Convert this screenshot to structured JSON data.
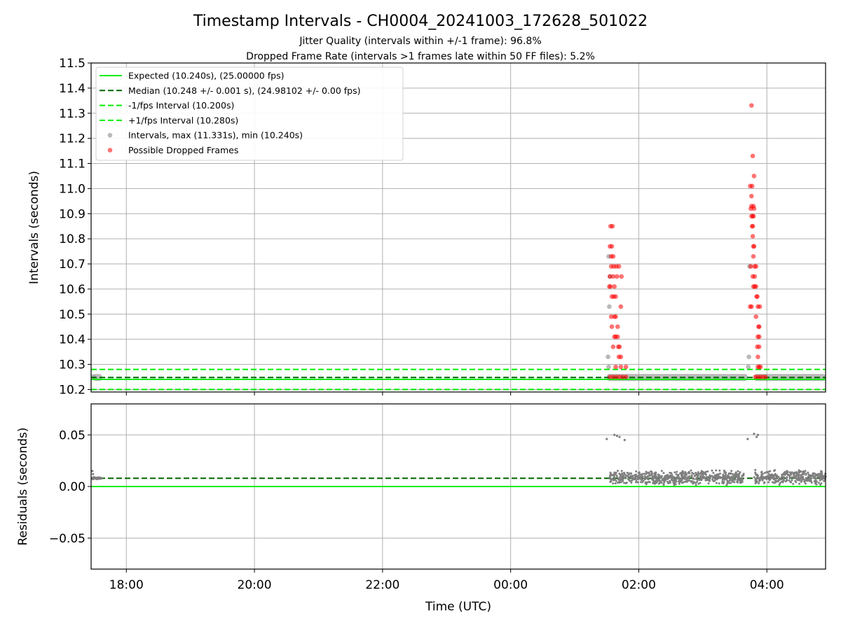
{
  "figure": {
    "title": "Timestamp Intervals - CH0004_20241003_172628_501022",
    "subtitle_1": "Jitter Quality (intervals within +/-1 frame): 96.8%",
    "subtitle_2": "Dropped Frame Rate (intervals >1 frames late within 50 FF files): 5.2%"
  },
  "colors": {
    "expected": "#00ee00",
    "median": "#006400",
    "bounds": "#00ee00",
    "intervals": "#7f7f7f",
    "dropped": "#ff0000",
    "grid": "#b0b0b0"
  },
  "chart_data": [
    {
      "type": "scatter",
      "title": "",
      "xlabel": "",
      "ylabel": "Intervals (seconds)",
      "x_unit": "hours (UTC)",
      "xlim": [
        "17:27",
        "04:55"
      ],
      "ylim": [
        10.19,
        11.5
      ],
      "xticks": [
        "18:00",
        "20:00",
        "22:00",
        "00:00",
        "02:00",
        "04:00"
      ],
      "yticks": [
        "10.2",
        "10.3",
        "10.4",
        "10.5",
        "10.6",
        "10.7",
        "10.8",
        "10.9",
        "11.0",
        "11.1",
        "11.2",
        "11.3",
        "11.4",
        "11.5"
      ],
      "grid": true,
      "legend_position": "top-left",
      "legend": [
        {
          "label": "Expected (10.240s), (25.00000 fps)",
          "style": "solid",
          "color_key": "expected"
        },
        {
          "label": "Median (10.248 +/- 0.001 s), (24.98102 +/- 0.00 fps)",
          "style": "dashed",
          "color_key": "median"
        },
        {
          "label": "-1/fps Interval (10.200s)",
          "style": "dashed",
          "color_key": "bounds"
        },
        {
          "label": "+1/fps Interval (10.280s)",
          "style": "dashed",
          "color_key": "bounds"
        },
        {
          "label": "Intervals, max (11.331s), min (10.240s)",
          "style": "point",
          "color_key": "intervals"
        },
        {
          "label": "Possible Dropped Frames",
          "style": "point",
          "color_key": "dropped"
        }
      ],
      "reference_lines": [
        {
          "y": 10.24,
          "style": "solid",
          "color_key": "expected"
        },
        {
          "y": 10.248,
          "style": "dashed",
          "color_key": "median"
        },
        {
          "y": 10.2,
          "style": "dashed",
          "color_key": "bounds"
        },
        {
          "y": 10.28,
          "style": "dashed",
          "color_key": "bounds"
        }
      ],
      "series": [
        {
          "name": "Intervals, max (11.331s), min (10.240s)",
          "points": [
            {
              "x": 17.48,
              "y": 10.252
            },
            {
              "x": 25.53,
              "y": 10.73
            },
            {
              "x": 25.55,
              "y": 10.65
            },
            {
              "x": 25.54,
              "y": 10.53
            },
            {
              "x": 25.52,
              "y": 10.33
            },
            {
              "x": 25.53,
              "y": 10.29
            },
            {
              "x": 27.73,
              "y": 10.69
            },
            {
              "x": 27.72,
              "y": 10.33
            },
            {
              "x": 27.71,
              "y": 10.29
            }
          ],
          "baseline_bands": [
            {
              "x_start": 17.48,
              "x_end": 17.62,
              "y": 10.248
            },
            {
              "x_start": 25.5,
              "x_end": 27.7,
              "y": 10.248
            },
            {
              "x_start": 27.8,
              "x_end": 28.92,
              "y": 10.248
            }
          ]
        },
        {
          "name": "Possible Dropped Frames",
          "points": [
            {
              "x": 25.56,
              "y": 10.85
            },
            {
              "x": 25.59,
              "y": 10.85
            },
            {
              "x": 25.55,
              "y": 10.77
            },
            {
              "x": 25.58,
              "y": 10.77
            },
            {
              "x": 25.57,
              "y": 10.73
            },
            {
              "x": 25.6,
              "y": 10.73
            },
            {
              "x": 25.57,
              "y": 10.69
            },
            {
              "x": 25.61,
              "y": 10.69
            },
            {
              "x": 25.65,
              "y": 10.69
            },
            {
              "x": 25.69,
              "y": 10.69
            },
            {
              "x": 25.55,
              "y": 10.65
            },
            {
              "x": 25.6,
              "y": 10.65
            },
            {
              "x": 25.66,
              "y": 10.65
            },
            {
              "x": 25.73,
              "y": 10.65
            },
            {
              "x": 25.54,
              "y": 10.61
            },
            {
              "x": 25.56,
              "y": 10.61
            },
            {
              "x": 25.62,
              "y": 10.61
            },
            {
              "x": 25.58,
              "y": 10.57
            },
            {
              "x": 25.61,
              "y": 10.57
            },
            {
              "x": 25.64,
              "y": 10.57
            },
            {
              "x": 25.72,
              "y": 10.53
            },
            {
              "x": 25.57,
              "y": 10.49
            },
            {
              "x": 25.62,
              "y": 10.49
            },
            {
              "x": 25.64,
              "y": 10.49
            },
            {
              "x": 25.58,
              "y": 10.45
            },
            {
              "x": 25.67,
              "y": 10.45
            },
            {
              "x": 25.62,
              "y": 10.41
            },
            {
              "x": 25.64,
              "y": 10.41
            },
            {
              "x": 25.67,
              "y": 10.41
            },
            {
              "x": 25.6,
              "y": 10.37
            },
            {
              "x": 25.68,
              "y": 10.37
            },
            {
              "x": 25.7,
              "y": 10.37
            },
            {
              "x": 25.69,
              "y": 10.33
            },
            {
              "x": 25.72,
              "y": 10.33
            },
            {
              "x": 25.64,
              "y": 10.29
            },
            {
              "x": 25.72,
              "y": 10.29
            },
            {
              "x": 25.8,
              "y": 10.29
            },
            {
              "x": 25.55,
              "y": 10.25
            },
            {
              "x": 25.6,
              "y": 10.25
            },
            {
              "x": 25.65,
              "y": 10.25
            },
            {
              "x": 25.7,
              "y": 10.25
            },
            {
              "x": 25.75,
              "y": 10.25
            },
            {
              "x": 25.8,
              "y": 10.25
            },
            {
              "x": 27.76,
              "y": 11.331
            },
            {
              "x": 27.78,
              "y": 11.13
            },
            {
              "x": 27.8,
              "y": 11.05
            },
            {
              "x": 27.74,
              "y": 11.01
            },
            {
              "x": 27.77,
              "y": 11.01
            },
            {
              "x": 27.76,
              "y": 10.97
            },
            {
              "x": 27.76,
              "y": 10.93
            },
            {
              "x": 27.79,
              "y": 10.93
            },
            {
              "x": 27.75,
              "y": 10.92
            },
            {
              "x": 27.8,
              "y": 10.92
            },
            {
              "x": 27.76,
              "y": 10.89
            },
            {
              "x": 27.78,
              "y": 10.89
            },
            {
              "x": 27.79,
              "y": 10.89
            },
            {
              "x": 27.77,
              "y": 10.85
            },
            {
              "x": 27.78,
              "y": 10.85
            },
            {
              "x": 27.78,
              "y": 10.81
            },
            {
              "x": 27.79,
              "y": 10.77
            },
            {
              "x": 27.8,
              "y": 10.77
            },
            {
              "x": 27.79,
              "y": 10.73
            },
            {
              "x": 27.75,
              "y": 10.69
            },
            {
              "x": 27.81,
              "y": 10.69
            },
            {
              "x": 27.83,
              "y": 10.69
            },
            {
              "x": 27.78,
              "y": 10.65
            },
            {
              "x": 27.81,
              "y": 10.65
            },
            {
              "x": 27.79,
              "y": 10.61
            },
            {
              "x": 27.81,
              "y": 10.61
            },
            {
              "x": 27.83,
              "y": 10.61
            },
            {
              "x": 27.84,
              "y": 10.57
            },
            {
              "x": 27.85,
              "y": 10.57
            },
            {
              "x": 27.74,
              "y": 10.53
            },
            {
              "x": 27.76,
              "y": 10.53
            },
            {
              "x": 27.86,
              "y": 10.53
            },
            {
              "x": 27.89,
              "y": 10.53
            },
            {
              "x": 27.83,
              "y": 10.49
            },
            {
              "x": 27.88,
              "y": 10.45
            },
            {
              "x": 27.87,
              "y": 10.45
            },
            {
              "x": 27.86,
              "y": 10.41
            },
            {
              "x": 27.88,
              "y": 10.41
            },
            {
              "x": 27.85,
              "y": 10.37
            },
            {
              "x": 27.88,
              "y": 10.37
            },
            {
              "x": 27.86,
              "y": 10.33
            },
            {
              "x": 27.86,
              "y": 10.29
            },
            {
              "x": 27.88,
              "y": 10.29
            },
            {
              "x": 27.9,
              "y": 10.29
            },
            {
              "x": 27.82,
              "y": 10.25
            },
            {
              "x": 27.86,
              "y": 10.25
            },
            {
              "x": 27.9,
              "y": 10.25
            },
            {
              "x": 27.94,
              "y": 10.25
            },
            {
              "x": 27.98,
              "y": 10.25
            }
          ]
        }
      ]
    },
    {
      "type": "scatter",
      "title": "",
      "xlabel": "Time (UTC)",
      "ylabel": "Residuals (seconds)",
      "x_unit": "hours (UTC)",
      "xlim": [
        "17:27",
        "04:55"
      ],
      "ylim": [
        -0.08,
        0.08
      ],
      "xticks": [
        "18:00",
        "20:00",
        "22:00",
        "00:00",
        "02:00",
        "04:00"
      ],
      "yticks": [
        "−0.05",
        "0.00",
        "0.05"
      ],
      "grid": true,
      "reference_lines": [
        {
          "y": 0.0,
          "style": "solid",
          "color_key": "expected"
        },
        {
          "y": 0.008,
          "style": "dashed",
          "color_key": "median"
        }
      ],
      "series": [
        {
          "name": "Residuals",
          "points": [
            {
              "x": 17.47,
              "y": 0.015
            },
            {
              "x": 17.48,
              "y": 0.012
            },
            {
              "x": 17.49,
              "y": 0.009
            },
            {
              "x": 25.5,
              "y": 0.046
            },
            {
              "x": 25.62,
              "y": 0.05
            },
            {
              "x": 25.66,
              "y": 0.049
            },
            {
              "x": 25.7,
              "y": 0.048
            },
            {
              "x": 25.78,
              "y": 0.045
            },
            {
              "x": 27.7,
              "y": 0.046
            },
            {
              "x": 27.8,
              "y": 0.051
            },
            {
              "x": 27.84,
              "y": 0.048
            },
            {
              "x": 27.86,
              "y": 0.05
            }
          ],
          "bands": [
            {
              "x_start": 17.47,
              "x_end": 17.62,
              "y_min": 0.007,
              "y_max": 0.009
            },
            {
              "x_start": 25.55,
              "x_end": 27.65,
              "y_min": 0.001,
              "y_max": 0.016
            },
            {
              "x_start": 27.8,
              "x_end": 28.92,
              "y_min": 0.001,
              "y_max": 0.017
            }
          ]
        }
      ]
    }
  ]
}
